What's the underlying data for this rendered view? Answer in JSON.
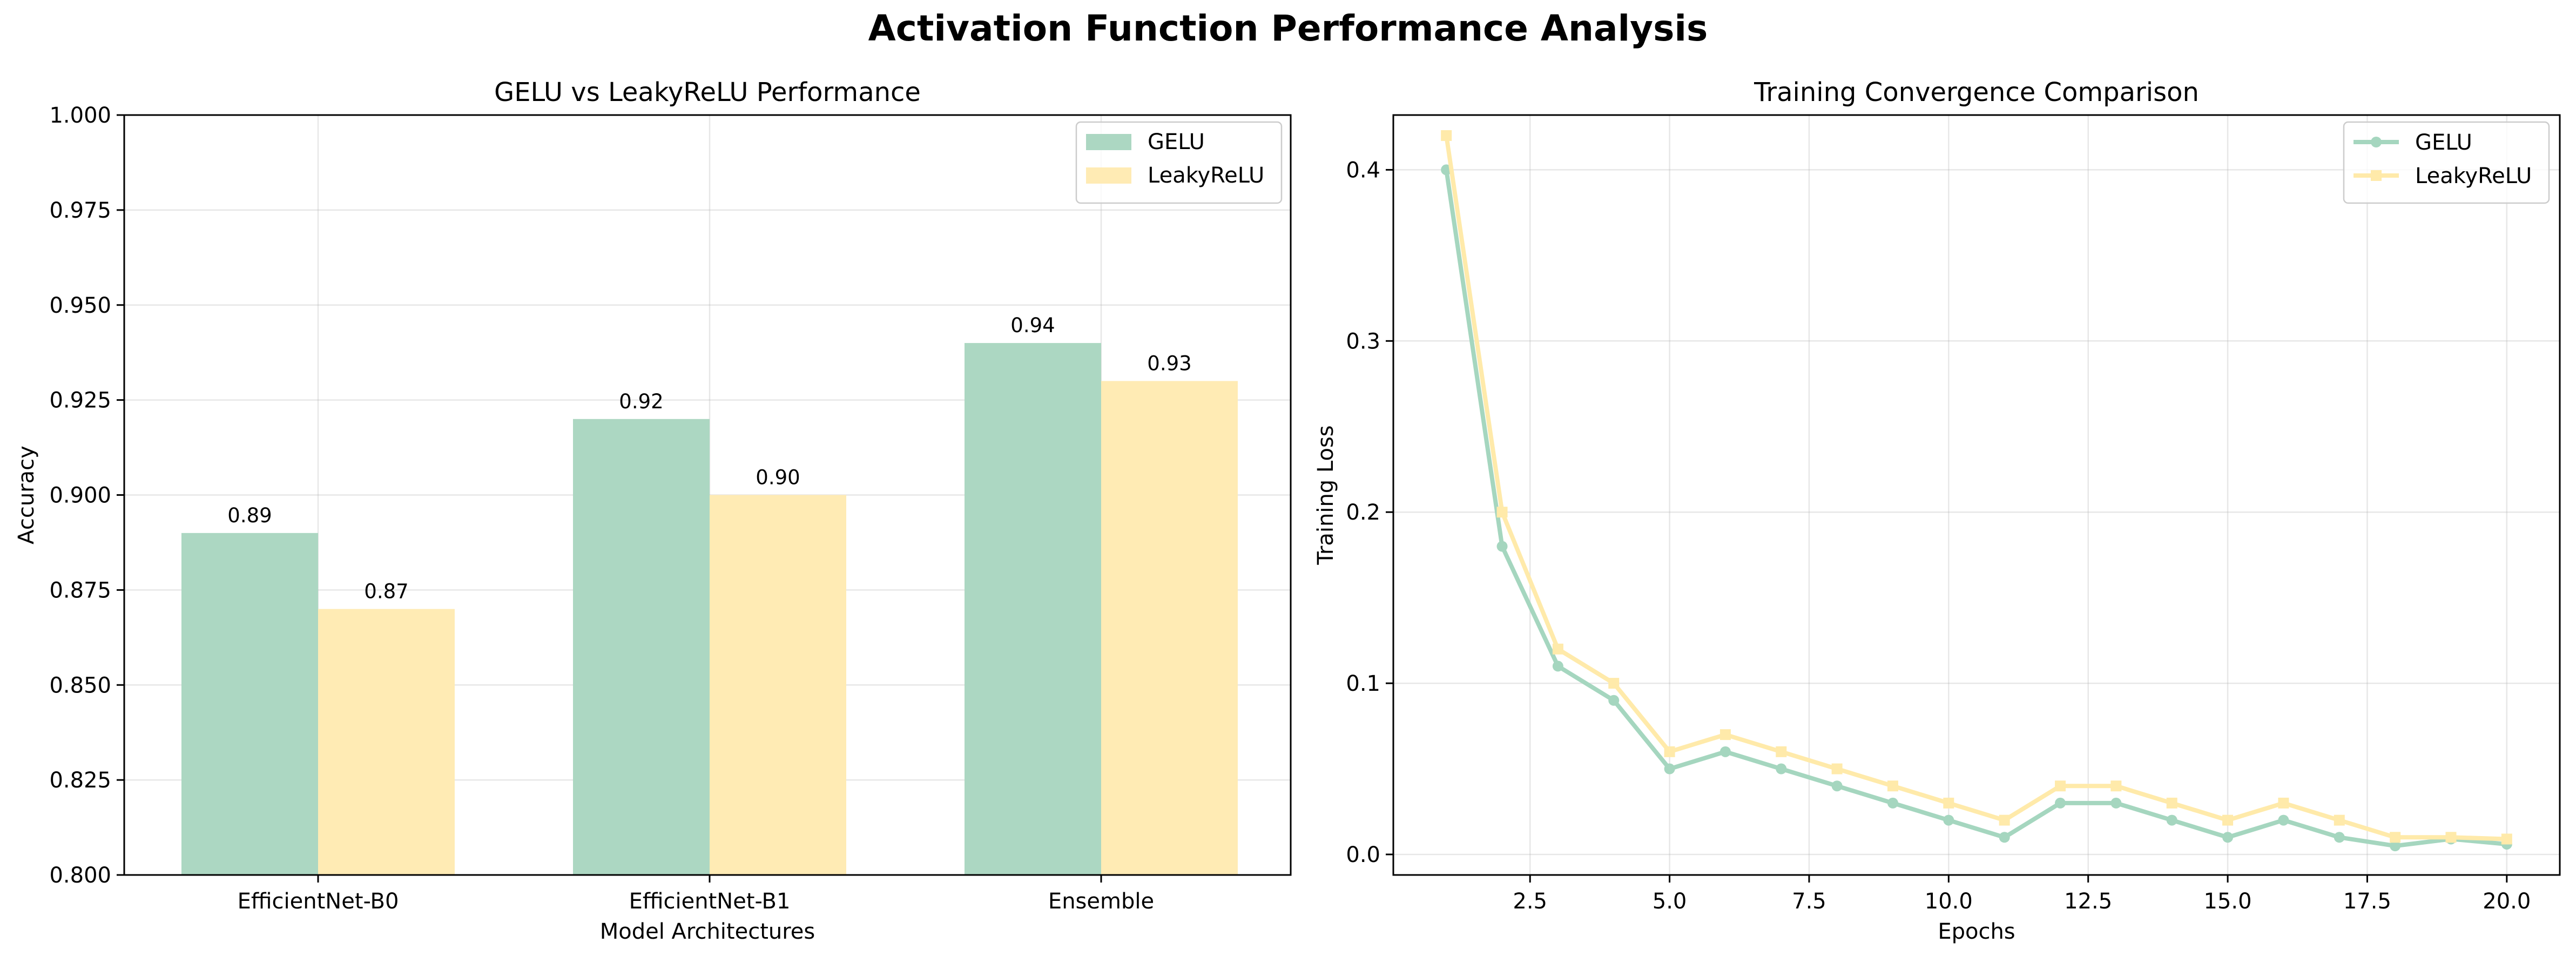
{
  "figure": {
    "title": "Activation Function Performance Analysis"
  },
  "chart_data": [
    {
      "type": "bar",
      "title": "GELU vs LeakyReLU Performance",
      "xlabel": "Model Architectures",
      "ylabel": "Accuracy",
      "categories": [
        "EfficientNet-B0",
        "EfficientNet-B1",
        "Ensemble"
      ],
      "series": [
        {
          "name": "GELU",
          "values": [
            0.89,
            0.92,
            0.94
          ],
          "color": "#acd7c2"
        },
        {
          "name": "LeakyReLU",
          "values": [
            0.87,
            0.9,
            0.93
          ],
          "color": "#ffebb4"
        }
      ],
      "data_labels": [
        [
          "0.89",
          "0.92",
          "0.94"
        ],
        [
          "0.87",
          "0.90",
          "0.93"
        ]
      ],
      "ylim": [
        0.8,
        1.0
      ],
      "yticks": [
        0.8,
        0.825,
        0.85,
        0.875,
        0.9,
        0.925,
        0.95,
        0.975,
        1.0
      ],
      "ytick_labels": [
        "0.800",
        "0.825",
        "0.850",
        "0.875",
        "0.900",
        "0.925",
        "0.950",
        "0.975",
        "1.000"
      ],
      "grid": true,
      "legend": "top-right"
    },
    {
      "type": "line",
      "title": "Training Convergence Comparison",
      "xlabel": "Epochs",
      "ylabel": "Training Loss",
      "x": [
        1,
        2,
        3,
        4,
        5,
        6,
        7,
        8,
        9,
        10,
        11,
        12,
        13,
        14,
        15,
        16,
        17,
        18,
        19,
        20
      ],
      "series": [
        {
          "name": "GELU",
          "marker": "circle",
          "color": "#a5d6bf",
          "values": [
            0.4,
            0.18,
            0.11,
            0.09,
            0.05,
            0.06,
            0.05,
            0.04,
            0.03,
            0.02,
            0.01,
            0.03,
            0.03,
            0.02,
            0.01,
            0.02,
            0.01,
            0.005,
            0.009,
            0.006
          ]
        },
        {
          "name": "LeakyReLU",
          "marker": "square",
          "color": "#ffeaaa",
          "values": [
            0.42,
            0.2,
            0.12,
            0.1,
            0.06,
            0.07,
            0.06,
            0.05,
            0.04,
            0.03,
            0.02,
            0.04,
            0.04,
            0.03,
            0.02,
            0.03,
            0.02,
            0.01,
            0.01,
            0.009
          ]
        }
      ],
      "xlim": [
        0.05,
        20.95
      ],
      "ylim": [
        -0.012,
        0.432
      ],
      "xticks": [
        2.5,
        5.0,
        7.5,
        10.0,
        12.5,
        15.0,
        17.5,
        20.0
      ],
      "xtick_labels": [
        "2.5",
        "5.0",
        "7.5",
        "10.0",
        "12.5",
        "15.0",
        "17.5",
        "20.0"
      ],
      "yticks": [
        0.0,
        0.1,
        0.2,
        0.3,
        0.4
      ],
      "ytick_labels": [
        "0.0",
        "0.1",
        "0.2",
        "0.3",
        "0.4"
      ],
      "grid": true,
      "legend": "top-right"
    }
  ]
}
